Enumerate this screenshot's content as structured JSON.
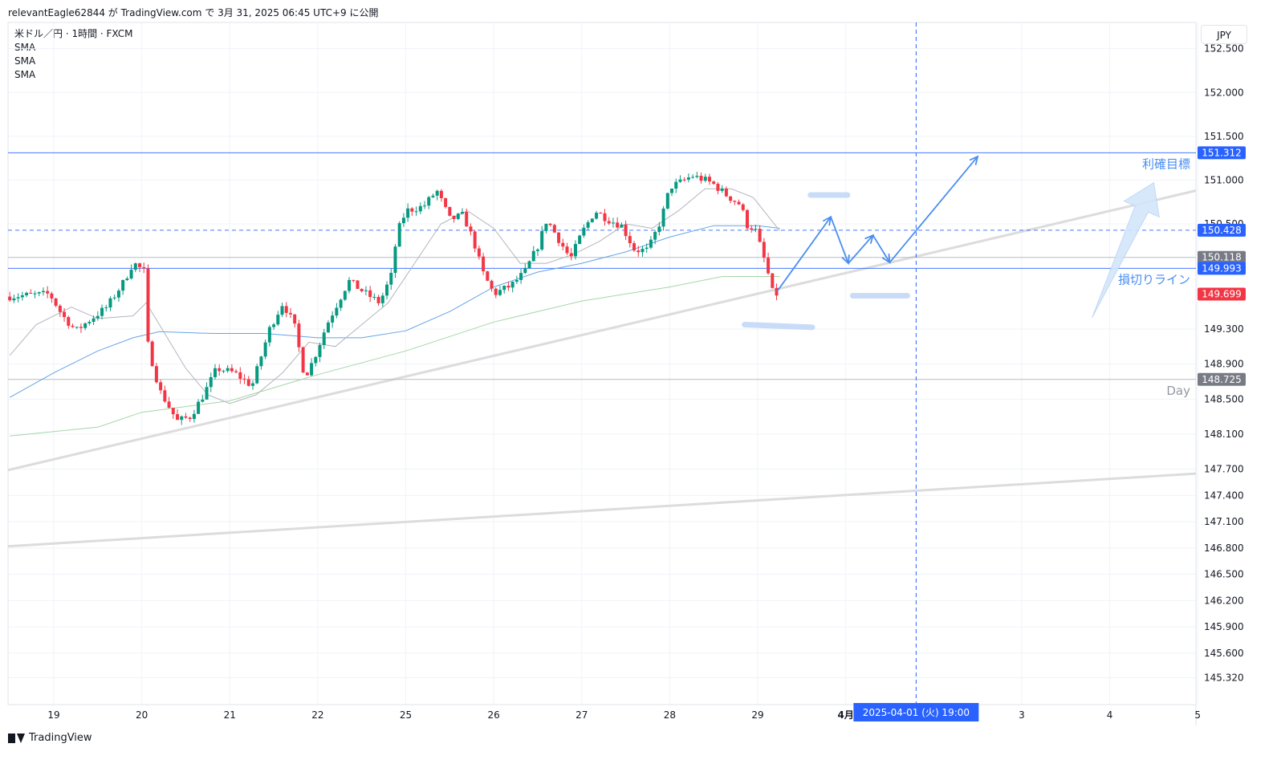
{
  "header": {
    "attribution": "relevantEagle62844 が TradingView.com で 3月 31, 2025 06:45 UTC+9 に公開"
  },
  "legend": {
    "symbol": "米ドル／円 · 1時間 · FXCM",
    "indicators": [
      "SMA",
      "SMA",
      "SMA"
    ]
  },
  "currency_button": "JPY",
  "footer": {
    "brand": "TradingView"
  },
  "colors": {
    "up": "#089981",
    "down": "#f23645",
    "blue": "#2962ff",
    "draw_blue": "#4a8ef0",
    "gray_label": "#787b86",
    "sma_fast": "#b2b5be",
    "sma_mid": "#64a4e8",
    "sma_slow": "#a5d6a7"
  },
  "chart_data": {
    "type": "candlestick",
    "symbol": "USDJPY",
    "timeframe": "1h",
    "x_ticks": [
      {
        "label": "19",
        "day": 0
      },
      {
        "label": "20",
        "day": 1
      },
      {
        "label": "21",
        "day": 2
      },
      {
        "label": "22",
        "day": 3
      },
      {
        "label": "25",
        "day": 4
      },
      {
        "label": "26",
        "day": 5
      },
      {
        "label": "27",
        "day": 6
      },
      {
        "label": "28",
        "day": 7
      },
      {
        "label": "29",
        "day": 8
      },
      {
        "label": "4月",
        "day": 9,
        "bold": true
      },
      {
        "label": "3",
        "day": 11
      },
      {
        "label": "4",
        "day": 12
      },
      {
        "label": "5",
        "day": 13
      }
    ],
    "x_range_days": [
      -0.52,
      12.98
    ],
    "y_ticks": [
      152.5,
      152.0,
      151.5,
      151.0,
      150.5,
      149.3,
      148.9,
      148.5,
      148.1,
      147.7,
      147.4,
      147.1,
      146.8,
      146.5,
      146.2,
      145.9,
      145.6,
      145.32
    ],
    "y_tick_labels": [
      "152.500",
      "152.000",
      "151.500",
      "151.000",
      "150.500",
      "149.300",
      "148.900",
      "148.500",
      "148.100",
      "147.700",
      "147.400",
      "147.100",
      "146.800",
      "146.500",
      "146.200",
      "145.900",
      "145.600",
      "145.320"
    ],
    "price_labels": [
      {
        "value": 151.312,
        "text": "151.312",
        "style": "blue"
      },
      {
        "value": 150.428,
        "text": "150.428",
        "style": "blue"
      },
      {
        "value": 150.118,
        "text": "150.118",
        "style": "gray"
      },
      {
        "value": 149.993,
        "text": "149.993",
        "style": "blue"
      },
      {
        "value": 149.699,
        "text": "149.699",
        "style": "red"
      },
      {
        "value": 148.725,
        "text": "148.725",
        "style": "gray"
      }
    ],
    "horizontal_lines": [
      {
        "value": 151.312,
        "style": "solid-blue"
      },
      {
        "value": 150.428,
        "style": "dashed-blue"
      },
      {
        "value": 150.118,
        "style": "solid-gray"
      },
      {
        "value": 149.993,
        "style": "solid-blue"
      },
      {
        "value": 148.725,
        "style": "solid-gray"
      }
    ],
    "line_labels": [
      {
        "text": "利確目標",
        "value": 151.312
      },
      {
        "text": "損切りライン",
        "value": 149.993
      },
      {
        "text": "Day",
        "value": 148.725
      }
    ],
    "crosshair": {
      "day": 9.8,
      "label": "2025-04-01 (火)   19:00"
    },
    "key_points": [
      {
        "day": -0.5,
        "price": 149.67
      },
      {
        "day": 0.0,
        "price": 149.7
      },
      {
        "day": 0.15,
        "price": 149.45
      },
      {
        "day": 0.3,
        "price": 149.28
      },
      {
        "day": 0.45,
        "price": 149.4
      },
      {
        "day": 0.65,
        "price": 149.55
      },
      {
        "day": 0.85,
        "price": 149.85
      },
      {
        "day": 0.95,
        "price": 150.06
      },
      {
        "day": 1.08,
        "price": 149.95
      },
      {
        "day": 1.12,
        "price": 149.1
      },
      {
        "day": 1.25,
        "price": 148.6
      },
      {
        "day": 1.45,
        "price": 148.25
      },
      {
        "day": 1.6,
        "price": 148.3
      },
      {
        "day": 1.75,
        "price": 148.55
      },
      {
        "day": 1.9,
        "price": 148.85
      },
      {
        "day": 2.1,
        "price": 148.8
      },
      {
        "day": 2.3,
        "price": 148.65
      },
      {
        "day": 2.5,
        "price": 149.3
      },
      {
        "day": 2.65,
        "price": 149.6
      },
      {
        "day": 2.78,
        "price": 149.35
      },
      {
        "day": 2.9,
        "price": 148.75
      },
      {
        "day": 3.0,
        "price": 148.95
      },
      {
        "day": 3.15,
        "price": 149.35
      },
      {
        "day": 3.4,
        "price": 149.85
      },
      {
        "day": 3.6,
        "price": 149.7
      },
      {
        "day": 3.75,
        "price": 149.6
      },
      {
        "day": 3.88,
        "price": 149.9
      },
      {
        "day": 3.95,
        "price": 150.4
      },
      {
        "day": 4.05,
        "price": 150.65
      },
      {
        "day": 4.25,
        "price": 150.7
      },
      {
        "day": 4.4,
        "price": 150.88
      },
      {
        "day": 4.55,
        "price": 150.55
      },
      {
        "day": 4.7,
        "price": 150.6
      },
      {
        "day": 4.82,
        "price": 150.3
      },
      {
        "day": 4.92,
        "price": 149.95
      },
      {
        "day": 5.05,
        "price": 149.7
      },
      {
        "day": 5.25,
        "price": 149.8
      },
      {
        "day": 5.4,
        "price": 149.95
      },
      {
        "day": 5.55,
        "price": 150.25
      },
      {
        "day": 5.65,
        "price": 150.55
      },
      {
        "day": 5.8,
        "price": 150.3
      },
      {
        "day": 5.92,
        "price": 150.1
      },
      {
        "day": 6.05,
        "price": 150.4
      },
      {
        "day": 6.2,
        "price": 150.65
      },
      {
        "day": 6.35,
        "price": 150.55
      },
      {
        "day": 6.5,
        "price": 150.48
      },
      {
        "day": 6.65,
        "price": 150.2
      },
      {
        "day": 6.8,
        "price": 150.2
      },
      {
        "day": 6.95,
        "price": 150.55
      },
      {
        "day": 7.05,
        "price": 150.92
      },
      {
        "day": 7.18,
        "price": 150.98
      },
      {
        "day": 7.3,
        "price": 151.05
      },
      {
        "day": 7.45,
        "price": 151.0
      },
      {
        "day": 7.55,
        "price": 150.95
      },
      {
        "day": 7.7,
        "price": 150.82
      },
      {
        "day": 7.85,
        "price": 150.72
      },
      {
        "day": 7.95,
        "price": 150.42
      },
      {
        "day": 8.0,
        "price": 150.5
      },
      {
        "day": 8.15,
        "price": 150.0
      },
      {
        "day": 8.22,
        "price": 149.7
      }
    ],
    "sma_fast": [
      {
        "day": -0.5,
        "price": 149.0
      },
      {
        "day": -0.2,
        "price": 149.35
      },
      {
        "day": 0.2,
        "price": 149.55
      },
      {
        "day": 0.5,
        "price": 149.42
      },
      {
        "day": 0.9,
        "price": 149.45
      },
      {
        "day": 1.05,
        "price": 149.6
      },
      {
        "day": 1.2,
        "price": 149.35
      },
      {
        "day": 1.5,
        "price": 148.85
      },
      {
        "day": 1.75,
        "price": 148.55
      },
      {
        "day": 2.0,
        "price": 148.45
      },
      {
        "day": 2.3,
        "price": 148.55
      },
      {
        "day": 2.6,
        "price": 148.8
      },
      {
        "day": 2.9,
        "price": 149.15
      },
      {
        "day": 3.2,
        "price": 149.1
      },
      {
        "day": 3.5,
        "price": 149.35
      },
      {
        "day": 3.8,
        "price": 149.6
      },
      {
        "day": 4.1,
        "price": 150.05
      },
      {
        "day": 4.4,
        "price": 150.5
      },
      {
        "day": 4.7,
        "price": 150.65
      },
      {
        "day": 5.0,
        "price": 150.45
      },
      {
        "day": 5.3,
        "price": 150.05
      },
      {
        "day": 5.6,
        "price": 150.05
      },
      {
        "day": 5.9,
        "price": 150.15
      },
      {
        "day": 6.2,
        "price": 150.3
      },
      {
        "day": 6.5,
        "price": 150.5
      },
      {
        "day": 6.8,
        "price": 150.45
      },
      {
        "day": 7.1,
        "price": 150.65
      },
      {
        "day": 7.4,
        "price": 150.9
      },
      {
        "day": 7.7,
        "price": 150.9
      },
      {
        "day": 7.95,
        "price": 150.8
      },
      {
        "day": 8.25,
        "price": 150.42
      }
    ],
    "sma_mid": [
      {
        "day": -0.5,
        "price": 148.52
      },
      {
        "day": 0.0,
        "price": 148.8
      },
      {
        "day": 0.5,
        "price": 149.05
      },
      {
        "day": 0.9,
        "price": 149.2
      },
      {
        "day": 1.2,
        "price": 149.27
      },
      {
        "day": 1.8,
        "price": 149.25
      },
      {
        "day": 2.4,
        "price": 149.25
      },
      {
        "day": 3.0,
        "price": 149.2
      },
      {
        "day": 3.5,
        "price": 149.2
      },
      {
        "day": 4.0,
        "price": 149.28
      },
      {
        "day": 4.5,
        "price": 149.5
      },
      {
        "day": 5.0,
        "price": 149.78
      },
      {
        "day": 5.5,
        "price": 149.95
      },
      {
        "day": 6.0,
        "price": 150.05
      },
      {
        "day": 6.5,
        "price": 150.18
      },
      {
        "day": 7.0,
        "price": 150.35
      },
      {
        "day": 7.5,
        "price": 150.48
      },
      {
        "day": 8.0,
        "price": 150.48
      },
      {
        "day": 8.25,
        "price": 150.45
      }
    ],
    "sma_slow": [
      {
        "day": -0.5,
        "price": 148.08
      },
      {
        "day": 0.5,
        "price": 148.18
      },
      {
        "day": 1.0,
        "price": 148.35
      },
      {
        "day": 2.0,
        "price": 148.48
      },
      {
        "day": 3.0,
        "price": 148.78
      },
      {
        "day": 4.0,
        "price": 149.05
      },
      {
        "day": 5.0,
        "price": 149.38
      },
      {
        "day": 6.0,
        "price": 149.62
      },
      {
        "day": 7.0,
        "price": 149.78
      },
      {
        "day": 7.6,
        "price": 149.9
      },
      {
        "day": 8.25,
        "price": 149.9
      }
    ],
    "trendlines": [
      {
        "from": {
          "day": -0.52,
          "price": 147.69
        },
        "to": {
          "day": 12.98,
          "price": 150.88
        }
      },
      {
        "from": {
          "day": -0.52,
          "price": 146.82
        },
        "to": {
          "day": 12.98,
          "price": 147.65
        }
      }
    ],
    "forecast_path": [
      {
        "day": 8.22,
        "price": 149.73
      },
      {
        "day": 8.83,
        "price": 150.58
      },
      {
        "day": 9.03,
        "price": 150.05
      },
      {
        "day": 9.31,
        "price": 150.37
      },
      {
        "day": 9.5,
        "price": 150.06
      },
      {
        "day": 10.5,
        "price": 151.27
      }
    ],
    "forecast_arrowheads": [
      {
        "day": 8.83,
        "price": 150.58
      },
      {
        "day": 9.03,
        "price": 150.05
      },
      {
        "day": 9.31,
        "price": 150.37
      },
      {
        "day": 9.5,
        "price": 150.06
      },
      {
        "day": 10.5,
        "price": 151.27
      }
    ],
    "highlight_bars": [
      {
        "from": {
          "day": 8.6,
          "price": 150.83
        },
        "to": {
          "day": 9.02,
          "price": 150.83
        }
      },
      {
        "from": {
          "day": 9.08,
          "price": 149.68
        },
        "to": {
          "day": 9.7,
          "price": 149.68
        }
      },
      {
        "from": {
          "day": 7.85,
          "price": 149.35
        },
        "to": {
          "day": 8.62,
          "price": 149.32
        }
      }
    ],
    "big_arrow": {
      "from": {
        "day": 11.8,
        "price": 149.43
      },
      "to": {
        "day": 12.5,
        "price": 150.97
      }
    }
  }
}
